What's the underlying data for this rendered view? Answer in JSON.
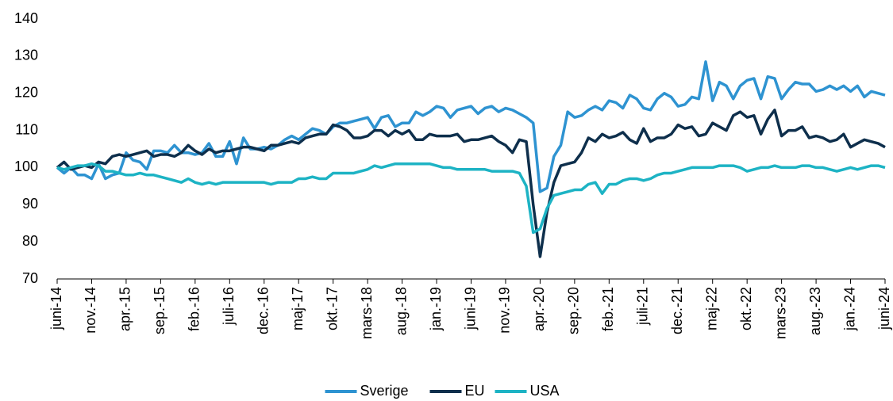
{
  "chart_data": {
    "type": "line",
    "categories": [
      "juni-14",
      null,
      null,
      null,
      null,
      "nov.-14",
      null,
      null,
      null,
      null,
      "apr.-15",
      null,
      null,
      null,
      null,
      "sep.-15",
      null,
      null,
      null,
      null,
      "feb.-16",
      null,
      null,
      null,
      null,
      "juli-16",
      null,
      null,
      null,
      null,
      "dec.-16",
      null,
      null,
      null,
      null,
      "maj-17",
      null,
      null,
      null,
      null,
      "okt.-17",
      null,
      null,
      null,
      null,
      "mars-18",
      null,
      null,
      null,
      null,
      "aug.-18",
      null,
      null,
      null,
      null,
      "jan.-19",
      null,
      null,
      null,
      null,
      "juni-19",
      null,
      null,
      null,
      null,
      "nov.-19",
      null,
      null,
      null,
      null,
      "apr.-20",
      null,
      null,
      null,
      null,
      "sep.-20",
      null,
      null,
      null,
      null,
      "feb.-21",
      null,
      null,
      null,
      null,
      "juli-21",
      null,
      null,
      null,
      null,
      "dec.-21",
      null,
      null,
      null,
      null,
      "maj-22",
      null,
      null,
      null,
      null,
      "okt.-22",
      null,
      null,
      null,
      null,
      "mars-23",
      null,
      null,
      null,
      null,
      "aug.-23",
      null,
      null,
      null,
      null,
      "jan.-24",
      null,
      null,
      null,
      null,
      "juni-24"
    ],
    "series": [
      {
        "name": "Sverige",
        "color": "#2e93d1",
        "values": [
          100,
          98.5,
          100,
          98,
          98,
          97,
          101,
          97,
          98,
          98.5,
          104,
          102,
          101.5,
          99.5,
          104.5,
          104.5,
          104,
          106,
          104,
          104,
          103.5,
          104,
          106.5,
          103,
          103,
          107,
          101,
          108,
          105,
          105,
          105.5,
          105,
          106,
          107.5,
          108.5,
          107.5,
          109,
          110.5,
          110,
          109,
          111,
          112,
          112,
          112.5,
          113,
          113.5,
          110.5,
          113.5,
          114,
          111,
          112,
          112,
          115,
          114,
          115,
          116.5,
          116,
          113.5,
          115.5,
          116,
          116.5,
          114.5,
          116,
          116.5,
          115,
          116,
          115.5,
          114.5,
          113.5,
          112,
          93.5,
          94.5,
          103,
          106,
          115,
          113.5,
          114,
          115.5,
          116.5,
          115.5,
          118,
          117.5,
          116,
          119.5,
          118.5,
          116,
          115.5,
          118.5,
          120,
          119,
          116.5,
          117,
          119,
          118.5,
          128.5,
          118,
          123,
          122,
          118.5,
          122,
          123.5,
          124,
          118.5,
          124.5,
          124,
          118.5,
          121,
          123,
          122.5,
          122.5,
          120.5,
          121,
          122,
          121,
          122,
          120.5,
          122,
          119,
          120.5,
          120,
          119.5
        ]
      },
      {
        "name": "EU",
        "color": "#0e2f4c",
        "values": [
          100,
          101.5,
          99.5,
          100,
          100.5,
          100,
          101.5,
          101,
          103,
          103.5,
          103,
          103.5,
          104,
          104.5,
          103,
          103.5,
          103.5,
          103,
          104,
          106,
          104.5,
          103.5,
          105,
          104,
          104.5,
          104.5,
          105,
          105.5,
          105.5,
          105,
          104.5,
          106,
          106,
          106.5,
          107,
          106.5,
          108,
          108.5,
          109,
          109,
          111.5,
          111,
          110,
          108,
          108,
          108.5,
          110,
          110,
          108.5,
          110,
          109,
          110,
          107.5,
          107.5,
          109,
          108.5,
          108.5,
          108.5,
          109,
          107,
          107.5,
          107.5,
          108,
          108.5,
          107,
          106,
          104,
          107.5,
          107,
          90,
          76,
          88,
          96,
          100.5,
          101,
          101.5,
          104,
          108,
          107,
          109,
          108,
          108.5,
          109.5,
          107.5,
          106.5,
          110.5,
          107,
          108,
          108,
          109,
          111.5,
          110.5,
          111,
          108.5,
          109,
          112,
          111,
          110,
          114,
          115,
          113.5,
          114,
          109,
          113,
          115.5,
          108.5,
          110,
          110,
          111,
          108,
          108.5,
          108,
          107,
          107.5,
          109,
          105.5,
          106.5,
          107.5,
          107,
          106.5,
          105.5
        ]
      },
      {
        "name": "USA",
        "color": "#1db3c4",
        "values": [
          100,
          99.5,
          100,
          100.5,
          100.5,
          101,
          100.5,
          99,
          99,
          98.5,
          98,
          98,
          98.5,
          98,
          98,
          97.5,
          97,
          96.5,
          96,
          97,
          96,
          95.5,
          96,
          95.5,
          96,
          96,
          96,
          96,
          96,
          96,
          96,
          95.5,
          96,
          96,
          96,
          97,
          97,
          97.5,
          97,
          97,
          98.5,
          98.5,
          98.5,
          98.5,
          99,
          99.5,
          100.5,
          100,
          100.5,
          101,
          101,
          101,
          101,
          101,
          101,
          100.5,
          100,
          100,
          99.5,
          99.5,
          99.5,
          99.5,
          99.5,
          99,
          99,
          99,
          99,
          98.5,
          95,
          82.5,
          83.5,
          89,
          92.5,
          93,
          93.5,
          94,
          94,
          95.5,
          96,
          93,
          95.5,
          95.5,
          96.5,
          97,
          97,
          96.5,
          97,
          98,
          98.5,
          98.5,
          99,
          99.5,
          100,
          100,
          100,
          100,
          100.5,
          100.5,
          100.5,
          100,
          99,
          99.5,
          100,
          100,
          100.5,
          100,
          100,
          100,
          100.5,
          100.5,
          100,
          100,
          99.5,
          99,
          99.5,
          100,
          99.5,
          100,
          100.5,
          100.5,
          100
        ]
      }
    ],
    "ylim": [
      70,
      140
    ],
    "yticks": [
      70,
      80,
      90,
      100,
      110,
      120,
      130,
      140
    ],
    "grid": false,
    "legend": "bottom"
  }
}
